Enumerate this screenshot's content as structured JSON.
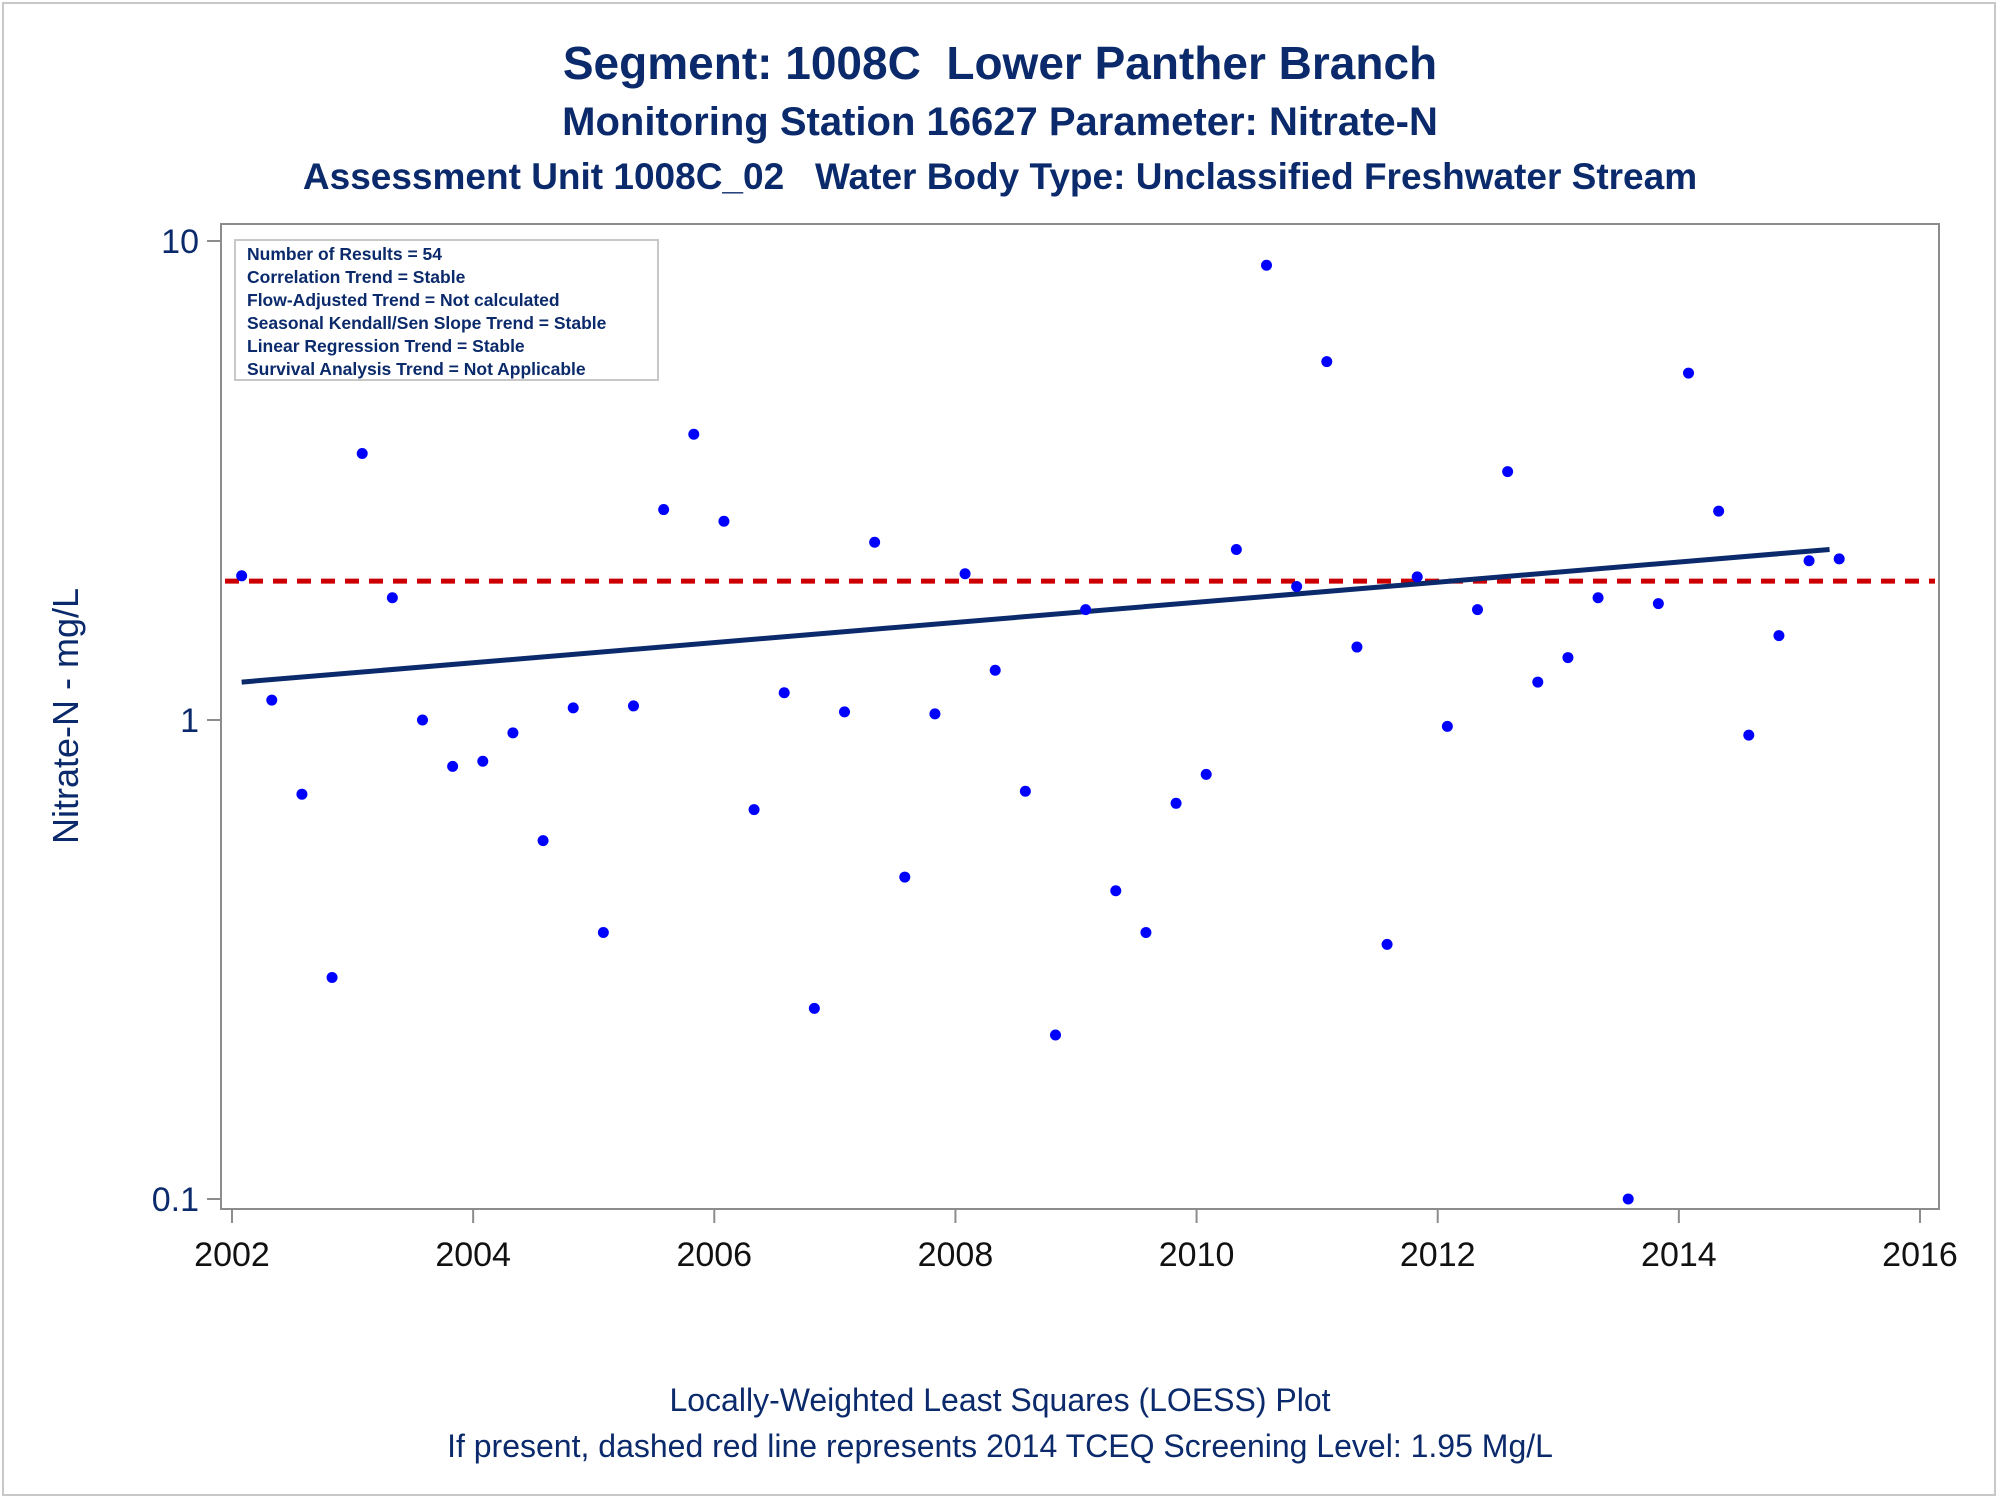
{
  "titles": {
    "line1": "Segment: 1008C  Lower Panther Branch",
    "line2": "Monitoring Station 16627 Parameter: Nitrate-N",
    "line3": "Assessment Unit 1008C_02   Water Body Type: Unclassified Freshwater Stream"
  },
  "footnotes": {
    "line1": "Locally-Weighted Least Squares (LOESS) Plot",
    "line2": "If present, dashed red line represents 2014 TCEQ Screening Level: 1.95 Mg/L"
  },
  "legend_box": {
    "lines": [
      "Number of Results = 54",
      "Correlation Trend = Stable",
      "Flow-Adjusted Trend = Not calculated",
      "Seasonal Kendall/Sen Slope Trend = Stable",
      "Linear Regression Trend = Stable",
      "Survival Analysis Trend = Not Applicable"
    ]
  },
  "colors": {
    "text": "#0b2a6b",
    "points": "#0000ff",
    "trend_line": "#0b2a6b",
    "screening_line": "#cc0000",
    "axis": "#8c8c8c"
  },
  "chart_data": {
    "type": "scatter",
    "title": "",
    "xlabel": "",
    "ylabel": "Nitrate-N - mg/L",
    "y_scale": "log",
    "xlim": [
      2002,
      2016
    ],
    "ylim": [
      0.1,
      10
    ],
    "x_ticks": [
      2002,
      2004,
      2006,
      2008,
      2010,
      2012,
      2014,
      2016
    ],
    "x_tick_labels": [
      "2002",
      "2004",
      "2006",
      "2008",
      "2010",
      "2012",
      "2014",
      "2016"
    ],
    "y_ticks": [
      0.1,
      1,
      10
    ],
    "y_tick_labels": [
      "0.1",
      "1",
      "10"
    ],
    "screening_level": 1.95,
    "loess_line": {
      "x": [
        2002.08,
        2015.25
      ],
      "y": [
        1.2,
        2.27
      ]
    },
    "series": [
      {
        "points": [
          [
            2002.08,
            2.0
          ],
          [
            2002.33,
            1.1
          ],
          [
            2002.58,
            0.7
          ],
          [
            2002.83,
            0.29
          ],
          [
            2003.08,
            3.6
          ],
          [
            2003.33,
            1.8
          ],
          [
            2003.58,
            1.0
          ],
          [
            2003.83,
            0.8
          ],
          [
            2004.08,
            0.82
          ],
          [
            2004.33,
            0.94
          ],
          [
            2004.58,
            0.56
          ],
          [
            2004.83,
            1.06
          ],
          [
            2005.08,
            0.36
          ],
          [
            2005.33,
            1.07
          ],
          [
            2005.58,
            2.75
          ],
          [
            2005.83,
            3.95
          ],
          [
            2006.08,
            2.6
          ],
          [
            2006.33,
            0.65
          ],
          [
            2006.58,
            1.14
          ],
          [
            2006.83,
            0.25
          ],
          [
            2007.08,
            1.04
          ],
          [
            2007.33,
            2.35
          ],
          [
            2007.58,
            0.47
          ],
          [
            2007.83,
            1.03
          ],
          [
            2008.08,
            2.02
          ],
          [
            2008.33,
            1.27
          ],
          [
            2008.58,
            0.71
          ],
          [
            2008.83,
            0.22
          ],
          [
            2009.08,
            1.7
          ],
          [
            2009.33,
            0.44
          ],
          [
            2009.58,
            0.36
          ],
          [
            2009.83,
            0.67
          ],
          [
            2010.08,
            0.77
          ],
          [
            2010.33,
            2.27
          ],
          [
            2010.58,
            8.9
          ],
          [
            2010.83,
            1.9
          ],
          [
            2011.08,
            5.6
          ],
          [
            2011.33,
            1.42
          ],
          [
            2011.58,
            0.34
          ],
          [
            2011.83,
            1.99
          ],
          [
            2012.08,
            0.97
          ],
          [
            2012.33,
            1.7
          ],
          [
            2012.58,
            3.3
          ],
          [
            2012.83,
            1.2
          ],
          [
            2013.08,
            1.35
          ],
          [
            2013.33,
            1.8
          ],
          [
            2013.58,
            0.1
          ],
          [
            2013.83,
            1.75
          ],
          [
            2014.08,
            5.3
          ],
          [
            2014.33,
            2.73
          ],
          [
            2014.58,
            0.93
          ],
          [
            2014.83,
            1.5
          ],
          [
            2015.08,
            2.15
          ],
          [
            2015.33,
            2.17
          ]
        ]
      }
    ]
  }
}
